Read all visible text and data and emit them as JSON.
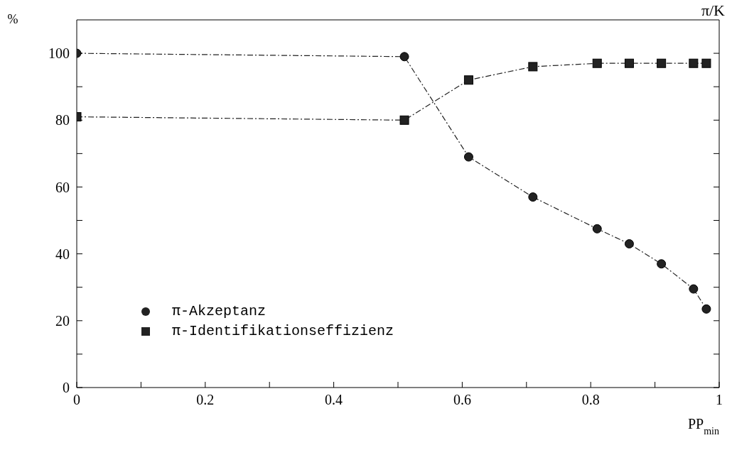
{
  "chart_data": {
    "type": "line",
    "ylabel": "%",
    "xlabel": "PP$_{min}$",
    "annotations": [
      "π/K"
    ],
    "series": [
      {
        "name": "π-Akzeptanz",
        "color": "#222222",
        "marker": "circle",
        "x": [
          0,
          0.51,
          0.61,
          0.71,
          0.81,
          0.86,
          0.91,
          0.96,
          0.98
        ],
        "values": [
          100,
          99,
          69,
          57,
          47.5,
          43,
          37,
          29.5,
          23.5
        ]
      },
      {
        "name": "π-Identifikationseffizienz",
        "color": "#222222",
        "marker": "square",
        "x": [
          0,
          0.51,
          0.61,
          0.71,
          0.81,
          0.86,
          0.91,
          0.96,
          0.98
        ],
        "values": [
          81,
          80,
          92,
          96,
          97,
          97,
          97,
          97,
          97
        ]
      }
    ],
    "xlim": [
      0,
      1
    ],
    "ylim": [
      0,
      110
    ],
    "xticks": [
      0,
      {
        "value": 0.1,
        "label": null
      },
      0.2,
      {
        "value": 0.3,
        "label": null
      },
      0.4,
      {
        "value": 0.5,
        "label": null
      },
      0.6,
      {
        "value": 0.7,
        "label": null
      },
      0.8,
      {
        "value": 0.9,
        "label": null
      },
      1
    ],
    "yticks": [
      0,
      {
        "value": 10,
        "label": null
      },
      20,
      {
        "value": 30,
        "label": null
      },
      40,
      {
        "value": 50,
        "label": null
      },
      60,
      {
        "value": 70,
        "label": null
      },
      80,
      {
        "value": 90,
        "label": null
      },
      100
    ],
    "grid": false,
    "legend": "bottom left",
    "line_style": "dashed"
  }
}
